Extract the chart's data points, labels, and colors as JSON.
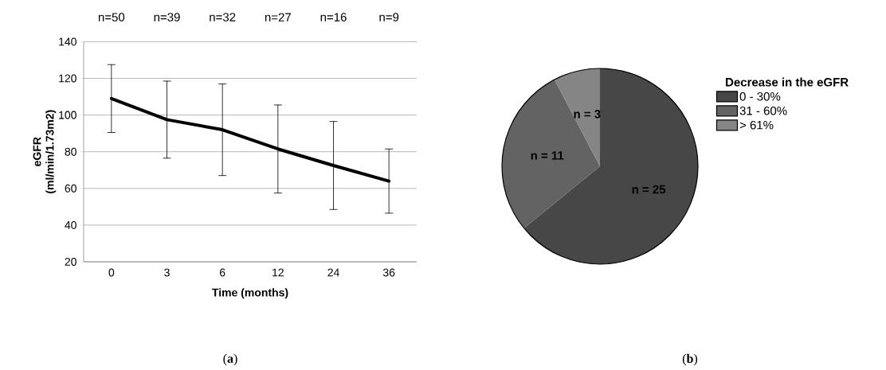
{
  "chart_data": [
    {
      "type": "line",
      "xlabel": "Time (months)",
      "ylabel": "eGFR (ml/min/1.73m2)",
      "categories": [
        "0",
        "3",
        "6",
        "12",
        "24",
        "36"
      ],
      "series": [
        {
          "color": "#000000",
          "values": [
            109,
            97.5,
            92,
            81.5,
            72.5,
            64
          ],
          "errors": [
            18.5,
            21,
            25,
            24,
            24,
            17.5
          ]
        }
      ],
      "ylim": [
        20,
        140
      ],
      "yticks": [
        20,
        40,
        60,
        80,
        100,
        120,
        140
      ],
      "grid": "y",
      "marker": "none",
      "line_style": "solid",
      "annotations": [
        "n=50",
        "n=39",
        "n=32",
        "n=27",
        "n=16",
        "n=9",
        "(**a**)"
      ]
    },
    {
      "type": "pie",
      "legend_title": "Decrease in the eGFR",
      "legend": "right",
      "categories": [
        "0 - 30%",
        "31 - 60%",
        "> 61%"
      ],
      "values": [
        25,
        11,
        3
      ],
      "colors": [
        "#474747",
        "#636363",
        "#858585"
      ],
      "value_labels": [
        "n = 25",
        "n = 11",
        "n = 3"
      ],
      "annotations": [
        "(**b**)"
      ]
    }
  ]
}
